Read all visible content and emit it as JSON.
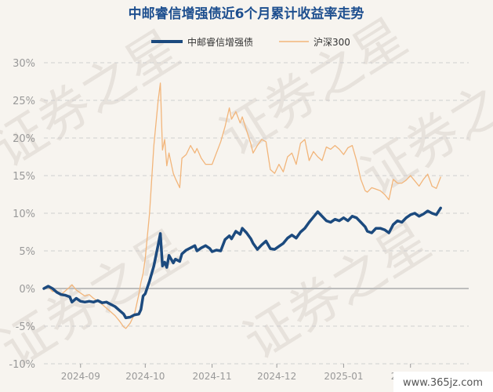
{
  "chart_data": {
    "type": "line",
    "title": "中邮睿信增强债近6个月累计收益率走势",
    "y_ticks": [
      "30%",
      "25%",
      "20%",
      "15%",
      "10%",
      "5%",
      "0%",
      "-5%",
      "-10%"
    ],
    "ylim": [
      -10,
      30
    ],
    "x_ticks": [
      "2024-09",
      "2024-10",
      "2024-11",
      "2024-12",
      "2025-01",
      "2025-02"
    ],
    "x_start": "2024-08-15",
    "x_end": "2025-02-28",
    "grid": true,
    "legend_position": "top-center",
    "series": [
      {
        "name": "中邮睿信增强债",
        "color": "#1c4a7e",
        "points": [
          [
            "2024-08-15",
            0
          ],
          [
            "2024-08-17",
            0.3
          ],
          [
            "2024-08-19",
            0
          ],
          [
            "2024-08-21",
            -0.5
          ],
          [
            "2024-08-23",
            -0.8
          ],
          [
            "2024-08-25",
            -0.9
          ],
          [
            "2024-08-27",
            -1.1
          ],
          [
            "2024-08-28",
            -1.8
          ],
          [
            "2024-08-30",
            -1.3
          ],
          [
            "2024-09-01",
            -1.7
          ],
          [
            "2024-09-03",
            -1.8
          ],
          [
            "2024-09-05",
            -1.7
          ],
          [
            "2024-09-07",
            -1.8
          ],
          [
            "2024-09-09",
            -1.6
          ],
          [
            "2024-09-11",
            -1.9
          ],
          [
            "2024-09-13",
            -1.8
          ],
          [
            "2024-09-15",
            -2.1
          ],
          [
            "2024-09-17",
            -2.4
          ],
          [
            "2024-09-19",
            -2.9
          ],
          [
            "2024-09-21",
            -3.4
          ],
          [
            "2024-09-22",
            -3.9
          ],
          [
            "2024-09-24",
            -3.8
          ],
          [
            "2024-09-26",
            -3.5
          ],
          [
            "2024-09-28",
            -3.4
          ],
          [
            "2024-09-29",
            -2.8
          ],
          [
            "2024-09-30",
            -1.0
          ],
          [
            "2024-10-01",
            -0.7
          ],
          [
            "2024-10-03",
            1.0
          ],
          [
            "2024-10-05",
            3.0
          ],
          [
            "2024-10-07",
            5.8
          ],
          [
            "2024-10-08",
            7.3
          ],
          [
            "2024-10-09",
            3.0
          ],
          [
            "2024-10-10",
            3.5
          ],
          [
            "2024-10-11",
            2.8
          ],
          [
            "2024-10-12",
            4.4
          ],
          [
            "2024-10-14",
            3.4
          ],
          [
            "2024-10-15",
            3.9
          ],
          [
            "2024-10-17",
            3.6
          ],
          [
            "2024-10-18",
            4.6
          ],
          [
            "2024-10-20",
            5.1
          ],
          [
            "2024-10-22",
            5.4
          ],
          [
            "2024-10-24",
            5.7
          ],
          [
            "2024-10-25",
            5.0
          ],
          [
            "2024-10-27",
            5.4
          ],
          [
            "2024-10-29",
            5.7
          ],
          [
            "2024-10-31",
            5.3
          ],
          [
            "2024-11-01",
            4.9
          ],
          [
            "2024-11-03",
            5.1
          ],
          [
            "2024-11-05",
            5.0
          ],
          [
            "2024-11-07",
            6.5
          ],
          [
            "2024-11-09",
            7.0
          ],
          [
            "2024-11-10",
            6.6
          ],
          [
            "2024-11-12",
            7.6
          ],
          [
            "2024-11-14",
            7.2
          ],
          [
            "2024-11-15",
            8.0
          ],
          [
            "2024-11-17",
            7.4
          ],
          [
            "2024-11-19",
            6.6
          ],
          [
            "2024-11-20",
            6.0
          ],
          [
            "2024-11-22",
            5.2
          ],
          [
            "2024-11-24",
            5.8
          ],
          [
            "2024-11-26",
            6.3
          ],
          [
            "2024-11-28",
            5.3
          ],
          [
            "2024-11-30",
            5.2
          ],
          [
            "2024-12-02",
            5.6
          ],
          [
            "2024-12-04",
            6.0
          ],
          [
            "2024-12-06",
            6.7
          ],
          [
            "2024-12-08",
            7.1
          ],
          [
            "2024-12-10",
            6.7
          ],
          [
            "2024-12-12",
            7.5
          ],
          [
            "2024-12-14",
            8.0
          ],
          [
            "2024-12-16",
            8.8
          ],
          [
            "2024-12-18",
            9.5
          ],
          [
            "2024-12-20",
            10.2
          ],
          [
            "2024-12-22",
            9.6
          ],
          [
            "2024-12-24",
            9.0
          ],
          [
            "2024-12-26",
            8.8
          ],
          [
            "2024-12-28",
            9.2
          ],
          [
            "2024-12-30",
            9.0
          ],
          [
            "2025-01-01",
            9.4
          ],
          [
            "2025-01-03",
            9.0
          ],
          [
            "2025-01-05",
            9.6
          ],
          [
            "2025-01-07",
            9.4
          ],
          [
            "2025-01-09",
            8.8
          ],
          [
            "2025-01-11",
            8.2
          ],
          [
            "2025-01-12",
            7.6
          ],
          [
            "2025-01-14",
            7.4
          ],
          [
            "2025-01-16",
            8.0
          ],
          [
            "2025-01-18",
            8.0
          ],
          [
            "2025-01-20",
            7.8
          ],
          [
            "2025-01-22",
            7.4
          ],
          [
            "2025-01-24",
            8.5
          ],
          [
            "2025-01-26",
            9.0
          ],
          [
            "2025-01-28",
            8.8
          ],
          [
            "2025-01-30",
            9.4
          ],
          [
            "2025-02-01",
            9.8
          ],
          [
            "2025-02-03",
            10.0
          ],
          [
            "2025-02-05",
            9.6
          ],
          [
            "2025-02-07",
            9.9
          ],
          [
            "2025-02-09",
            10.3
          ],
          [
            "2025-02-11",
            10.0
          ],
          [
            "2025-02-13",
            9.8
          ],
          [
            "2025-02-15",
            10.7
          ]
        ]
      },
      {
        "name": "沪深300",
        "color": "#f2b57a",
        "points": [
          [
            "2024-08-15",
            0
          ],
          [
            "2024-08-17",
            0.2
          ],
          [
            "2024-08-19",
            -0.4
          ],
          [
            "2024-08-21",
            -0.3
          ],
          [
            "2024-08-23",
            -0.8
          ],
          [
            "2024-08-25",
            -0.3
          ],
          [
            "2024-08-27",
            0.2
          ],
          [
            "2024-08-28",
            0.5
          ],
          [
            "2024-08-30",
            -0.2
          ],
          [
            "2024-09-01",
            -0.6
          ],
          [
            "2024-09-03",
            -1.0
          ],
          [
            "2024-09-05",
            -0.8
          ],
          [
            "2024-09-07",
            -1.3
          ],
          [
            "2024-09-09",
            -1.7
          ],
          [
            "2024-09-11",
            -2.1
          ],
          [
            "2024-09-13",
            -2.6
          ],
          [
            "2024-09-15",
            -3.1
          ],
          [
            "2024-09-17",
            -3.6
          ],
          [
            "2024-09-19",
            -4.3
          ],
          [
            "2024-09-21",
            -5.1
          ],
          [
            "2024-09-22",
            -5.3
          ],
          [
            "2024-09-24",
            -4.6
          ],
          [
            "2024-09-26",
            -3.4
          ],
          [
            "2024-09-28",
            -0.8
          ],
          [
            "2024-09-29",
            0.8
          ],
          [
            "2024-09-30",
            2.0
          ],
          [
            "2024-10-01",
            4.0
          ],
          [
            "2024-10-03",
            10.0
          ],
          [
            "2024-10-05",
            19.0
          ],
          [
            "2024-10-07",
            25.0
          ],
          [
            "2024-10-08",
            27.3
          ],
          [
            "2024-10-09",
            18.4
          ],
          [
            "2024-10-10",
            19.8
          ],
          [
            "2024-10-11",
            16.3
          ],
          [
            "2024-10-12",
            18.0
          ],
          [
            "2024-10-14",
            15.3
          ],
          [
            "2024-10-15",
            14.6
          ],
          [
            "2024-10-17",
            13.4
          ],
          [
            "2024-10-18",
            17.3
          ],
          [
            "2024-10-20",
            17.8
          ],
          [
            "2024-10-22",
            19.0
          ],
          [
            "2024-10-24",
            18.0
          ],
          [
            "2024-10-25",
            18.6
          ],
          [
            "2024-10-27",
            17.3
          ],
          [
            "2024-10-29",
            16.5
          ],
          [
            "2024-10-31",
            16.5
          ],
          [
            "2024-11-01",
            16.5
          ],
          [
            "2024-11-03",
            18.0
          ],
          [
            "2024-11-05",
            19.5
          ],
          [
            "2024-11-07",
            21.5
          ],
          [
            "2024-11-09",
            24.0
          ],
          [
            "2024-11-10",
            22.5
          ],
          [
            "2024-11-12",
            23.5
          ],
          [
            "2024-11-14",
            22.0
          ],
          [
            "2024-11-15",
            22.8
          ],
          [
            "2024-11-17",
            21.0
          ],
          [
            "2024-11-19",
            19.2
          ],
          [
            "2024-11-20",
            18.0
          ],
          [
            "2024-11-22",
            19.0
          ],
          [
            "2024-11-24",
            19.8
          ],
          [
            "2024-11-26",
            19.5
          ],
          [
            "2024-11-28",
            15.8
          ],
          [
            "2024-11-30",
            15.3
          ],
          [
            "2024-12-02",
            16.5
          ],
          [
            "2024-12-04",
            15.5
          ],
          [
            "2024-12-06",
            17.5
          ],
          [
            "2024-12-08",
            18.0
          ],
          [
            "2024-12-10",
            16.5
          ],
          [
            "2024-12-12",
            19.3
          ],
          [
            "2024-12-14",
            19.8
          ],
          [
            "2024-12-16",
            17.0
          ],
          [
            "2024-12-18",
            18.2
          ],
          [
            "2024-12-20",
            17.5
          ],
          [
            "2024-12-22",
            17.0
          ],
          [
            "2024-12-24",
            18.8
          ],
          [
            "2024-12-26",
            18.5
          ],
          [
            "2024-12-28",
            19.0
          ],
          [
            "2024-12-30",
            18.5
          ],
          [
            "2025-01-01",
            17.8
          ],
          [
            "2025-01-03",
            18.7
          ],
          [
            "2025-01-05",
            19.0
          ],
          [
            "2025-01-07",
            17.0
          ],
          [
            "2025-01-09",
            14.5
          ],
          [
            "2025-01-11",
            13.0
          ],
          [
            "2025-01-12",
            12.8
          ],
          [
            "2025-01-14",
            13.4
          ],
          [
            "2025-01-16",
            13.2
          ],
          [
            "2025-01-18",
            13.0
          ],
          [
            "2025-01-20",
            12.5
          ],
          [
            "2025-01-22",
            11.8
          ],
          [
            "2025-01-24",
            14.5
          ],
          [
            "2025-01-26",
            14.0
          ],
          [
            "2025-01-28",
            14.0
          ],
          [
            "2025-01-30",
            14.4
          ],
          [
            "2025-02-01",
            15.0
          ],
          [
            "2025-02-03",
            14.3
          ],
          [
            "2025-02-05",
            13.6
          ],
          [
            "2025-02-07",
            14.5
          ],
          [
            "2025-02-09",
            15.2
          ],
          [
            "2025-02-11",
            13.6
          ],
          [
            "2025-02-13",
            13.3
          ],
          [
            "2025-02-15",
            14.8
          ]
        ]
      }
    ]
  },
  "watermark": [
    "证券之星",
    "证券之星",
    "证券之星",
    "证券之星",
    "证券之星"
  ],
  "corner_text": "www.365jz.com"
}
